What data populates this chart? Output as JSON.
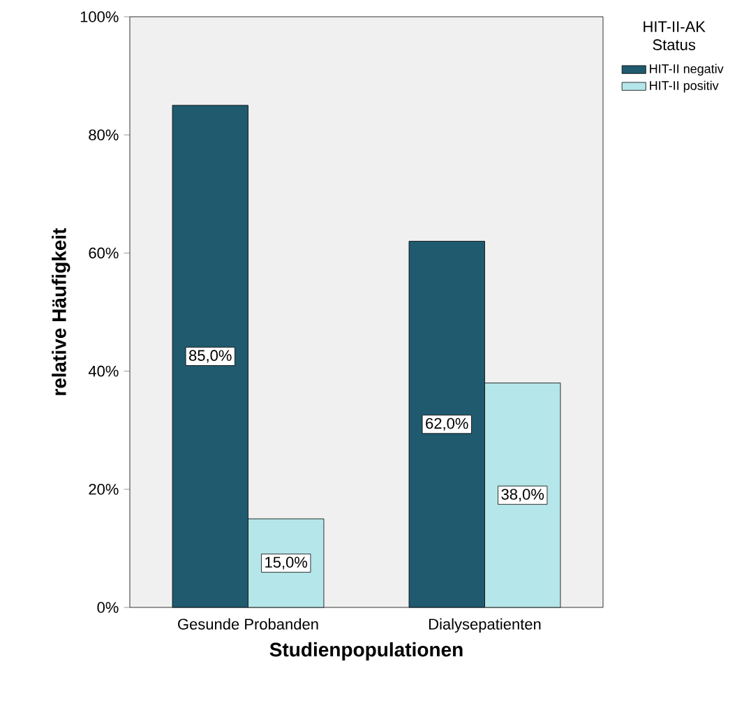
{
  "chart_data": {
    "type": "bar",
    "xlabel": "Studienpopulationen",
    "ylabel": "relative Häufigkeit",
    "legend_title": "HIT-II-AK Status",
    "categories": [
      "Gesunde Probanden",
      "Dialysepatienten"
    ],
    "series": [
      {
        "name": "HIT-II negativ",
        "color": "#1f5a6e",
        "values": [
          85,
          62
        ],
        "value_labels": [
          "85,0%",
          "62,0%"
        ]
      },
      {
        "name": "HIT-II positiv",
        "color": "#b5e6e9",
        "values": [
          15,
          38
        ],
        "value_labels": [
          "15,0%",
          "38,0%"
        ]
      }
    ],
    "ylim": [
      0,
      100
    ],
    "yticks": [
      {
        "value": 0,
        "label": "0%"
      },
      {
        "value": 20,
        "label": "20%"
      },
      {
        "value": 40,
        "label": "40%"
      },
      {
        "value": 60,
        "label": "60%"
      },
      {
        "value": 80,
        "label": "80%"
      },
      {
        "value": 100,
        "label": "100%"
      }
    ],
    "legend": "right",
    "grid": false
  }
}
